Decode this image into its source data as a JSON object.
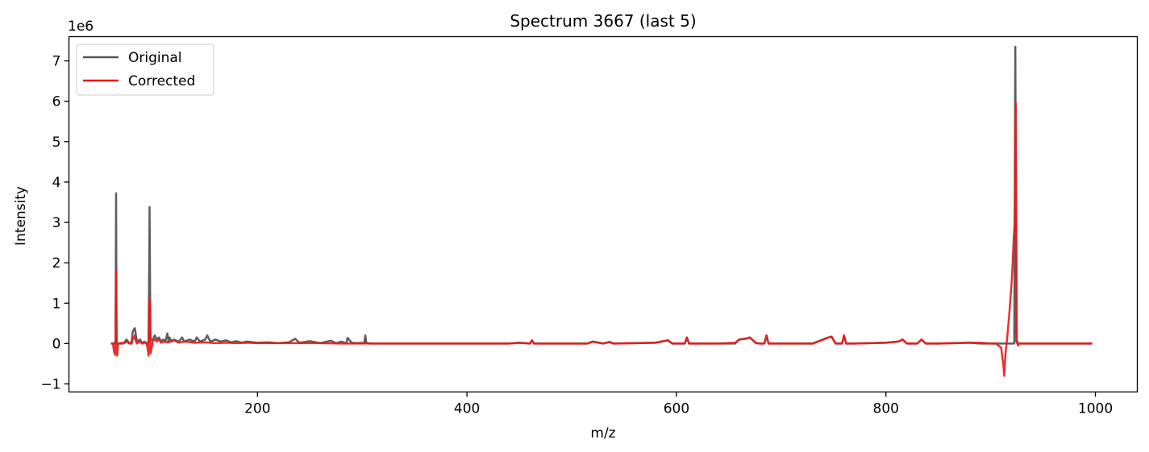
{
  "chart_data": {
    "type": "line",
    "title": "Spectrum 3667 (last 5)",
    "xlabel": "m/z",
    "ylabel": "Intensity",
    "y_scale_label": "1e6",
    "xlim": [
      20,
      1040
    ],
    "ylim": [
      -1.2,
      7.6
    ],
    "x_ticks": [
      200,
      400,
      600,
      800,
      1000
    ],
    "x_tick_labels": [
      "200",
      "400",
      "600",
      "800",
      "1000"
    ],
    "y_ticks": [
      -1,
      0,
      1,
      2,
      3,
      4,
      5,
      6,
      7
    ],
    "y_tick_labels": [
      "−1",
      "0",
      "1",
      "2",
      "3",
      "4",
      "5",
      "6",
      "7"
    ],
    "grid": false,
    "legend_position": "top-left",
    "series": [
      {
        "name": "Original",
        "color": "#555555",
        "x": [
          60,
          63,
          64.5,
          65,
          65.5,
          66,
          68,
          72,
          75,
          78,
          80,
          81,
          82,
          83,
          84,
          85,
          88,
          90,
          92,
          94,
          96,
          96.5,
          97,
          97.5,
          98,
          100,
          102,
          104,
          106,
          108,
          110,
          112,
          114,
          115,
          116,
          118,
          120,
          125,
          128,
          130,
          135,
          140,
          142,
          145,
          150,
          152,
          155,
          160,
          165,
          170,
          175,
          180,
          185,
          190,
          200,
          210,
          220,
          230,
          236,
          240,
          250,
          260,
          270,
          275,
          280,
          285,
          286,
          290,
          295,
          302,
          303,
          304,
          310,
          350,
          400,
          440,
          450,
          460,
          462,
          464,
          470,
          500,
          515,
          520,
          530,
          536,
          540,
          580,
          592,
          596,
          606,
          608,
          610,
          612,
          614,
          620,
          640,
          656,
          660,
          666,
          670,
          676,
          680,
          684,
          686,
          688,
          690,
          700,
          730,
          740,
          744,
          748,
          752,
          758,
          760,
          762,
          770,
          800,
          812,
          816,
          820,
          830,
          834,
          838,
          850,
          880,
          890,
          900,
          915,
          920,
          921,
          922.5,
          923.5,
          924.5,
          925.5,
          927,
          930,
          950,
          970,
          997
        ],
        "y": [
          0,
          0,
          0.05,
          3.72,
          0.05,
          0,
          0,
          0,
          0.1,
          0,
          0.05,
          0.3,
          0.35,
          0.38,
          0.2,
          0.05,
          0.1,
          0,
          0.05,
          0,
          0.05,
          1.5,
          3.38,
          1.2,
          0.1,
          0.1,
          0.2,
          0.1,
          0.15,
          0.05,
          0.1,
          0.05,
          0.25,
          0.05,
          0.15,
          0.05,
          0.1,
          0.05,
          0.15,
          0.05,
          0.1,
          0.05,
          0.15,
          0.05,
          0.1,
          0.2,
          0.05,
          0.1,
          0.05,
          0.08,
          0.03,
          0.06,
          0.02,
          0.05,
          0.02,
          0.03,
          0.01,
          0.03,
          0.12,
          0.02,
          0.06,
          0.01,
          0.07,
          0.01,
          0.05,
          0.01,
          0.14,
          0.02,
          0.01,
          0.02,
          0.2,
          0.01,
          0,
          0,
          0,
          0,
          0.02,
          0,
          0.08,
          0,
          0,
          0,
          0,
          0.05,
          0,
          0.04,
          0,
          0.02,
          0.08,
          0,
          0,
          0,
          0.15,
          0,
          0,
          0,
          0,
          0,
          0.1,
          0.12,
          0.15,
          0.01,
          0,
          0,
          0.2,
          0,
          0,
          0,
          0,
          0.1,
          0.14,
          0.17,
          0,
          0,
          0.2,
          0,
          0,
          0.02,
          0.05,
          0.1,
          0,
          0,
          0.1,
          0,
          0,
          0.02,
          0,
          0,
          0,
          0,
          0,
          0,
          7.35,
          0.05,
          0,
          0,
          0,
          0,
          0,
          0
        ]
      },
      {
        "name": "Corrected",
        "color": "#e8191a",
        "x": [
          60,
          62,
          63,
          64,
          64.5,
          65,
          65.5,
          66,
          67,
          68,
          70,
          72,
          75,
          78,
          80,
          81,
          82,
          83,
          84,
          85,
          88,
          90,
          92,
          94,
          95,
          96,
          96.5,
          97,
          97.5,
          98,
          99,
          100,
          102,
          104,
          106,
          108,
          110,
          115,
          120,
          125,
          130,
          140,
          150,
          160,
          170,
          180,
          190,
          200,
          220,
          240,
          260,
          280,
          300,
          302,
          303,
          304,
          310,
          350,
          400,
          440,
          450,
          460,
          462,
          464,
          470,
          500,
          515,
          520,
          530,
          536,
          540,
          580,
          592,
          596,
          606,
          608,
          610,
          612,
          614,
          620,
          640,
          656,
          660,
          666,
          670,
          676,
          680,
          684,
          686,
          688,
          690,
          700,
          730,
          740,
          744,
          748,
          752,
          758,
          760,
          762,
          770,
          800,
          812,
          816,
          820,
          830,
          834,
          838,
          850,
          880,
          890,
          900,
          905,
          910,
          912,
          913,
          914,
          916,
          918,
          920,
          921,
          922,
          923,
          924,
          925,
          926,
          927,
          930,
          950,
          970,
          997
        ],
        "y": [
          0,
          0,
          -0.2,
          -0.28,
          0.1,
          1.8,
          0.1,
          -0.3,
          0,
          0,
          0.02,
          0,
          0.05,
          0,
          0,
          0.15,
          0.12,
          0.2,
          0.05,
          0,
          0.05,
          0,
          0.03,
          0,
          -0.1,
          -0.3,
          0.8,
          1.1,
          0.6,
          -0.25,
          -0.1,
          0.05,
          0.1,
          0.05,
          0.1,
          0.02,
          0.05,
          0.03,
          0.08,
          0.02,
          0.05,
          0.02,
          0.03,
          0.01,
          0.02,
          0.01,
          0.02,
          0.01,
          0.01,
          0.01,
          0.01,
          0,
          0,
          0,
          0.05,
          0,
          0,
          0,
          0,
          0,
          0.02,
          0,
          0.08,
          0,
          0,
          0,
          0,
          0.05,
          0,
          0.04,
          0,
          0.02,
          0.08,
          0,
          0,
          0,
          0.15,
          0,
          0,
          0,
          0,
          0.02,
          0.1,
          0.12,
          0.15,
          0.01,
          0,
          0,
          0.2,
          0,
          0,
          0,
          0,
          0.1,
          0.14,
          0.17,
          0,
          0,
          0.2,
          0,
          0,
          0.02,
          0.05,
          0.1,
          0,
          0,
          0.1,
          0,
          0,
          0.02,
          0.02,
          0,
          0,
          -0.1,
          -0.5,
          -0.8,
          -0.3,
          0.2,
          0.8,
          1.5,
          2.0,
          2.6,
          3.0,
          5.95,
          0.1,
          -0.05,
          0,
          0,
          0,
          0,
          0
        ]
      }
    ]
  }
}
